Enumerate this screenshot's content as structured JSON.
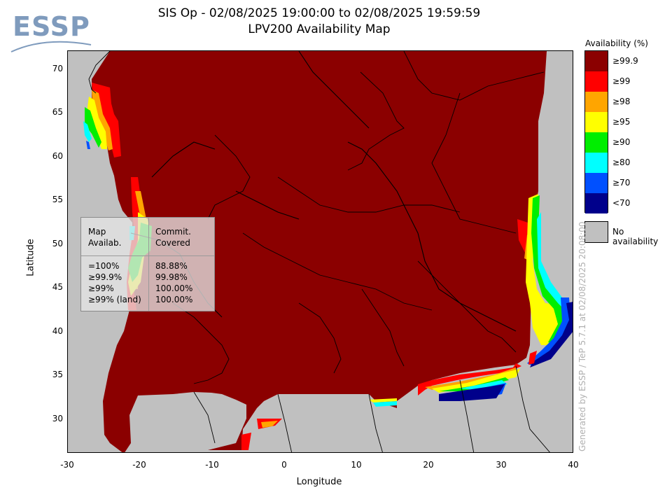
{
  "logo": {
    "text": "ESSP"
  },
  "title": {
    "line1": "SIS Op - 02/08/2025 19:00:00 to 02/08/2025 19:59:59",
    "line2": "LPV200 Availability Map"
  },
  "axes": {
    "xlabel": "Longitude",
    "ylabel": "Latitude",
    "xticks": [
      "-30",
      "-20",
      "-10",
      "0",
      "10",
      "20",
      "30",
      "40"
    ],
    "yticks": [
      "70",
      "65",
      "60",
      "55",
      "50",
      "45",
      "40",
      "35",
      "30"
    ],
    "xlim": [
      -30,
      40
    ],
    "ylim": [
      26,
      72
    ]
  },
  "legend": {
    "title": "Availability (%)",
    "items": [
      {
        "label": "≥99.9",
        "color": "#8b0000"
      },
      {
        "label": "≥99",
        "color": "#ff0000"
      },
      {
        "label": "≥98",
        "color": "#ffa500"
      },
      {
        "label": "≥95",
        "color": "#ffff00"
      },
      {
        "label": "≥90",
        "color": "#00ee00"
      },
      {
        "label": "≥80",
        "color": "#00ffff"
      },
      {
        "label": "≥70",
        "color": "#0050ff"
      },
      {
        "label": "<70",
        "color": "#00008b"
      }
    ],
    "no_availability": {
      "label": "No availability",
      "color": "#c0c0c0"
    }
  },
  "stats": {
    "header_left": [
      "Map",
      "Availab."
    ],
    "header_right": [
      "Commit.",
      "Covered"
    ],
    "rows": [
      {
        "avail": "=100%",
        "covered": "88.88%"
      },
      {
        "avail": "≥99.9%",
        "covered": "99.98%"
      },
      {
        "avail": "≥99%",
        "covered": "100.00%"
      },
      {
        "avail": "≥99% (land)",
        "covered": "100.00%"
      }
    ]
  },
  "credit": "Generated by ESSP / TeP 5.7.1 at 02/08/2025 20:08:00"
}
